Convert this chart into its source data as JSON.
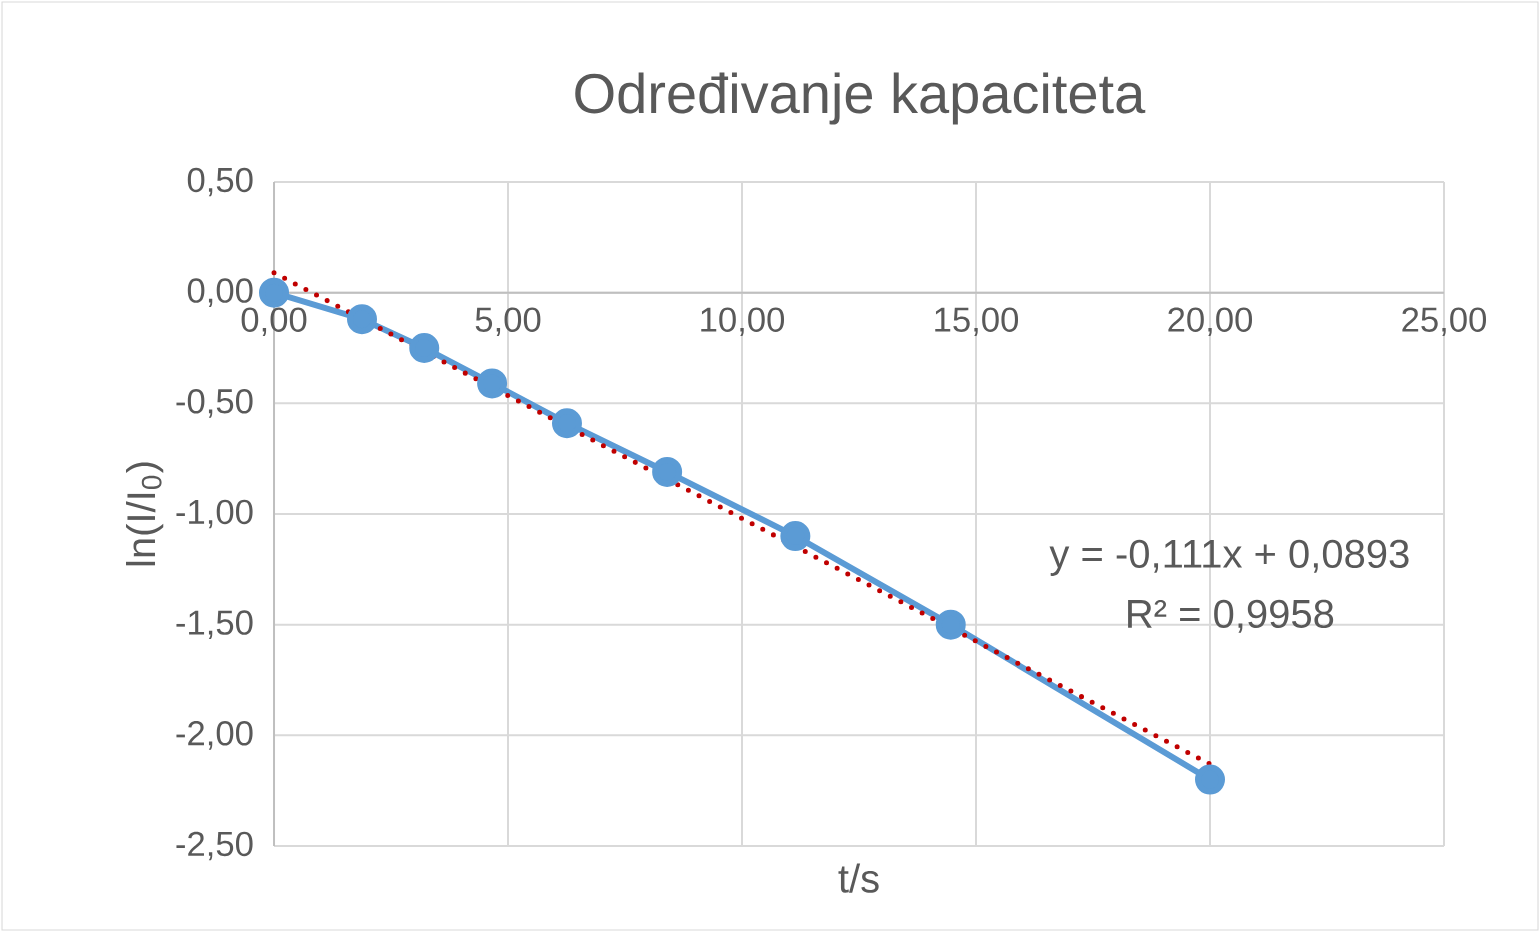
{
  "chart_data": {
    "type": "line",
    "title": "Određivanje kapaciteta",
    "xlabel": "t/s",
    "ylabel": "ln(I/I$_{0}$)",
    "series": [
      {
        "color": "#5b9bd5",
        "marker": "circle",
        "line_style": "solid",
        "x": [
          0,
          1.88,
          3.21,
          4.66,
          6.26,
          8.4,
          11.14,
          14.46,
          20.0
        ],
        "values": [
          0,
          -0.12,
          -0.25,
          -0.41,
          -0.59,
          -0.81,
          -1.1,
          -1.5,
          -2.2
        ]
      },
      {
        "color": "#c00000",
        "marker": "none",
        "line_style": "dotted",
        "x": [
          0,
          20
        ],
        "values": [
          0.09,
          -2.13
        ]
      }
    ],
    "annotations": [
      "y = -0,111x + 0,0893",
      "R² = 0,9958"
    ],
    "xlim": [
      0,
      25
    ],
    "ylim": [
      -2.5,
      0.5
    ],
    "xticks": [
      {
        "value": 0,
        "label": "0,00"
      },
      {
        "value": 5,
        "label": "5,00"
      },
      {
        "value": 10,
        "label": "10,00"
      },
      {
        "value": 15,
        "label": "15,00"
      },
      {
        "value": 20,
        "label": "20,00"
      },
      {
        "value": 25,
        "label": "25,00"
      }
    ],
    "yticks": [
      {
        "value": 0.5,
        "label": "0,50"
      },
      {
        "value": 0,
        "label": "0,00"
      },
      {
        "value": -0.5,
        "label": "-0,50"
      },
      {
        "value": -1,
        "label": "-1,00"
      },
      {
        "value": -1.5,
        "label": "-1,50"
      },
      {
        "value": -2,
        "label": "-2,00"
      },
      {
        "value": -2.5,
        "label": "-2,50"
      }
    ],
    "grid": true
  }
}
